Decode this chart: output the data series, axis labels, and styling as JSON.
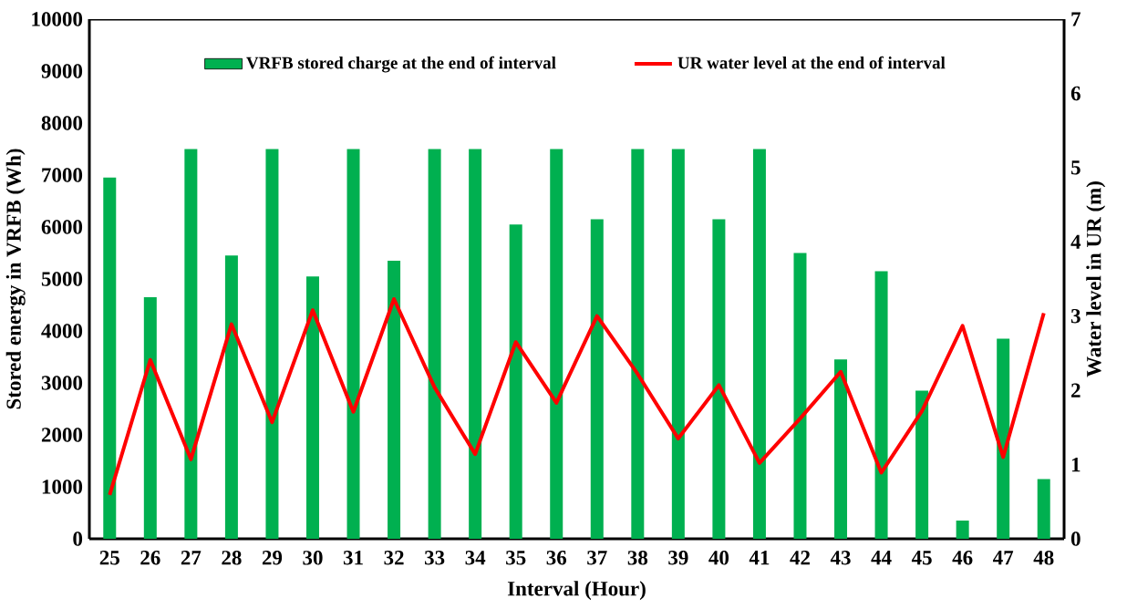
{
  "chart_data": {
    "type": "bar",
    "categories": [
      "25",
      "26",
      "27",
      "28",
      "29",
      "30",
      "31",
      "32",
      "33",
      "34",
      "35",
      "36",
      "37",
      "38",
      "39",
      "40",
      "41",
      "42",
      "43",
      "44",
      "45",
      "46",
      "47",
      "48"
    ],
    "series": [
      {
        "name": "VRFB stored charge at the end of interval",
        "color": "#00b050",
        "values": [
          6950,
          4650,
          7500,
          5450,
          7500,
          5050,
          7500,
          5350,
          7500,
          7500,
          6050,
          7500,
          6150,
          7500,
          7500,
          6150,
          7500,
          5500,
          3450,
          5150,
          2850,
          350,
          3850,
          1150
        ]
      },
      {
        "name": "UR water level at the end of interval",
        "type": "line",
        "axis": "y2",
        "color": "#ff0000",
        "values": [
          0.59,
          2.41,
          1.07,
          2.89,
          1.57,
          3.08,
          1.71,
          3.23,
          2.04,
          1.14,
          2.65,
          1.83,
          3.0,
          2.22,
          1.35,
          2.07,
          1.02,
          1.62,
          2.25,
          0.89,
          1.72,
          2.87,
          1.1,
          3.04
        ]
      }
    ],
    "xlabel": "Interval (Hour)",
    "ylabel": "Stored energy in VRFB (Wh)",
    "y2label": "Water level in UR (m)",
    "ylim": [
      0,
      10000
    ],
    "yticks": [
      0,
      1000,
      2000,
      3000,
      4000,
      5000,
      6000,
      7000,
      8000,
      9000,
      10000
    ],
    "y2lim": [
      0,
      7
    ],
    "y2ticks": [
      0,
      1,
      2,
      3,
      4,
      5,
      6,
      7
    ],
    "legend": "top",
    "grid": false,
    "marker": "none",
    "line_style": "solid"
  }
}
